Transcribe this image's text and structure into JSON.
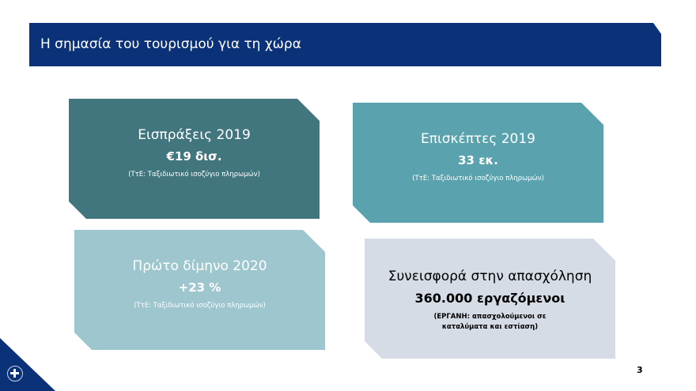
{
  "header": {
    "title": "Η σημασία του τουρισμού για τη χώρα"
  },
  "boxes": [
    {
      "title": "Εισπράξεις 2019",
      "value": "€19 δισ.",
      "source": "(ΤτΕ: Ταξιδιωτικό ισοζύγιο πληρωμών)",
      "color": "#41767f"
    },
    {
      "title": "Επισκέπτες 2019",
      "value": "33 εκ.",
      "source": "(ΤτΕ: Ταξιδιωτικό ισοζύγιο πληρωμών)",
      "color": "#5aa3ae"
    },
    {
      "title": "Πρώτο δίμηνο 2020",
      "value": "+23 %",
      "source": "(ΤτΕ: Ταξιδιωτικό ισοζύγιο πληρωμών)",
      "color": "#9ec6cf"
    },
    {
      "title": "Συνεισφορά στην απασχόληση",
      "value": "360.000 εργαζόμενοι",
      "source": "(ΕΡΓΑΝΗ: απασχολούμενοι σε καταλύματα και εστίαση)",
      "color": "#d5dce6"
    }
  ],
  "footer": {
    "page_number": "3",
    "logo_icon": "hellenic-republic-emblem-icon"
  }
}
